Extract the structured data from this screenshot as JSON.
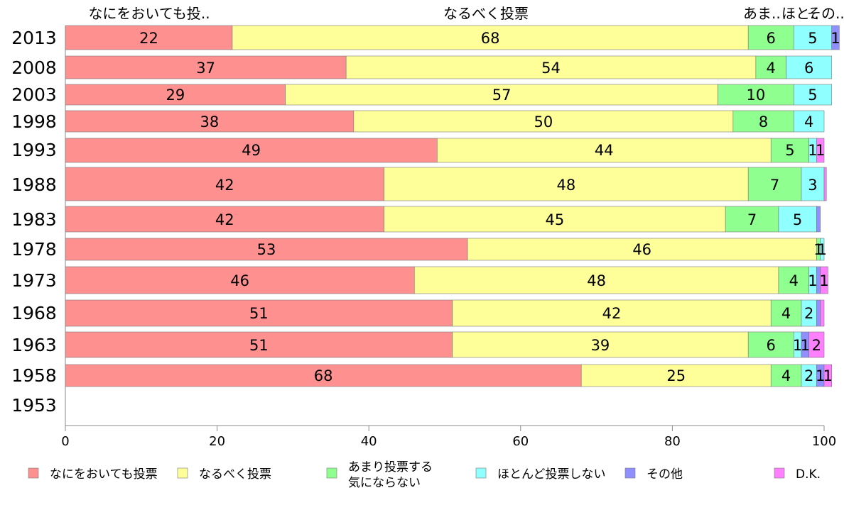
{
  "chart_data": {
    "type": "bar",
    "orientation": "horizontal",
    "stacked": true,
    "categories": [
      "2013",
      "2008",
      "2003",
      "1998",
      "1993",
      "1988",
      "1983",
      "1978",
      "1973",
      "1968",
      "1963",
      "1958",
      "1953"
    ],
    "series": [
      {
        "name": "なにをおいても投票",
        "color": "#ff9090",
        "values": [
          22,
          37,
          29,
          38,
          49,
          42,
          42,
          53,
          46,
          51,
          51,
          68,
          null
        ]
      },
      {
        "name": "なるべく投票",
        "color": "#ffff9a",
        "values": [
          68,
          54,
          57,
          50,
          44,
          48,
          45,
          46,
          48,
          42,
          39,
          25,
          null
        ]
      },
      {
        "name": "あまり投票する気にならない",
        "color": "#8fff8f",
        "values": [
          6,
          4,
          10,
          8,
          5,
          7,
          7,
          0.5,
          4,
          4,
          6,
          4,
          null
        ]
      },
      {
        "name": "ほとんど投票しない",
        "color": "#90ffff",
        "values": [
          5,
          6,
          5,
          4,
          1,
          3,
          5,
          0.5,
          1,
          2,
          1,
          2,
          null
        ]
      },
      {
        "name": "その他",
        "color": "#8f8fff",
        "values": [
          1,
          0,
          0,
          0,
          0,
          0,
          0.5,
          0,
          0.5,
          0.5,
          1,
          1,
          null
        ]
      },
      {
        "name": "D.K.",
        "color": "#ff80ff",
        "values": [
          0,
          0,
          0,
          0,
          1,
          0.3,
          0,
          0,
          1,
          0.5,
          2,
          1,
          null
        ]
      }
    ],
    "value_labels": [
      [
        "22",
        "68",
        "6",
        "5",
        "1",
        ""
      ],
      [
        "37",
        "54",
        "4",
        "6",
        "",
        ""
      ],
      [
        "29",
        "57",
        "10",
        "5",
        "",
        ""
      ],
      [
        "38",
        "50",
        "8",
        "4",
        "",
        ""
      ],
      [
        "49",
        "44",
        "5",
        "1",
        "",
        "1"
      ],
      [
        "42",
        "48",
        "7",
        "3",
        "",
        ""
      ],
      [
        "42",
        "45",
        "7",
        "5",
        "",
        ""
      ],
      [
        "53",
        "46",
        "1",
        "1",
        "",
        ""
      ],
      [
        "46",
        "48",
        "4",
        "1",
        "",
        "1"
      ],
      [
        "51",
        "42",
        "4",
        "2",
        "",
        ""
      ],
      [
        "51",
        "39",
        "6",
        "1",
        "1",
        "2"
      ],
      [
        "68",
        "25",
        "4",
        "2",
        "1",
        "1"
      ],
      [
        "",
        "",
        "",
        "",
        "",
        ""
      ]
    ],
    "top_labels": [
      "なにをおいても投..",
      "なるべく投票",
      "あま..",
      "ほと..",
      "その..",
      ""
    ],
    "legend_labels": [
      "なにをおいても投票",
      "なるべく投票",
      "あまり投票する\n気にならない",
      "ほとんど投票しない",
      "その他",
      "D.K."
    ],
    "xlim": [
      0,
      100
    ],
    "xticks": [
      "0",
      "20",
      "40",
      "60",
      "80",
      "100"
    ],
    "grid": false,
    "legend_position": "bottom"
  }
}
